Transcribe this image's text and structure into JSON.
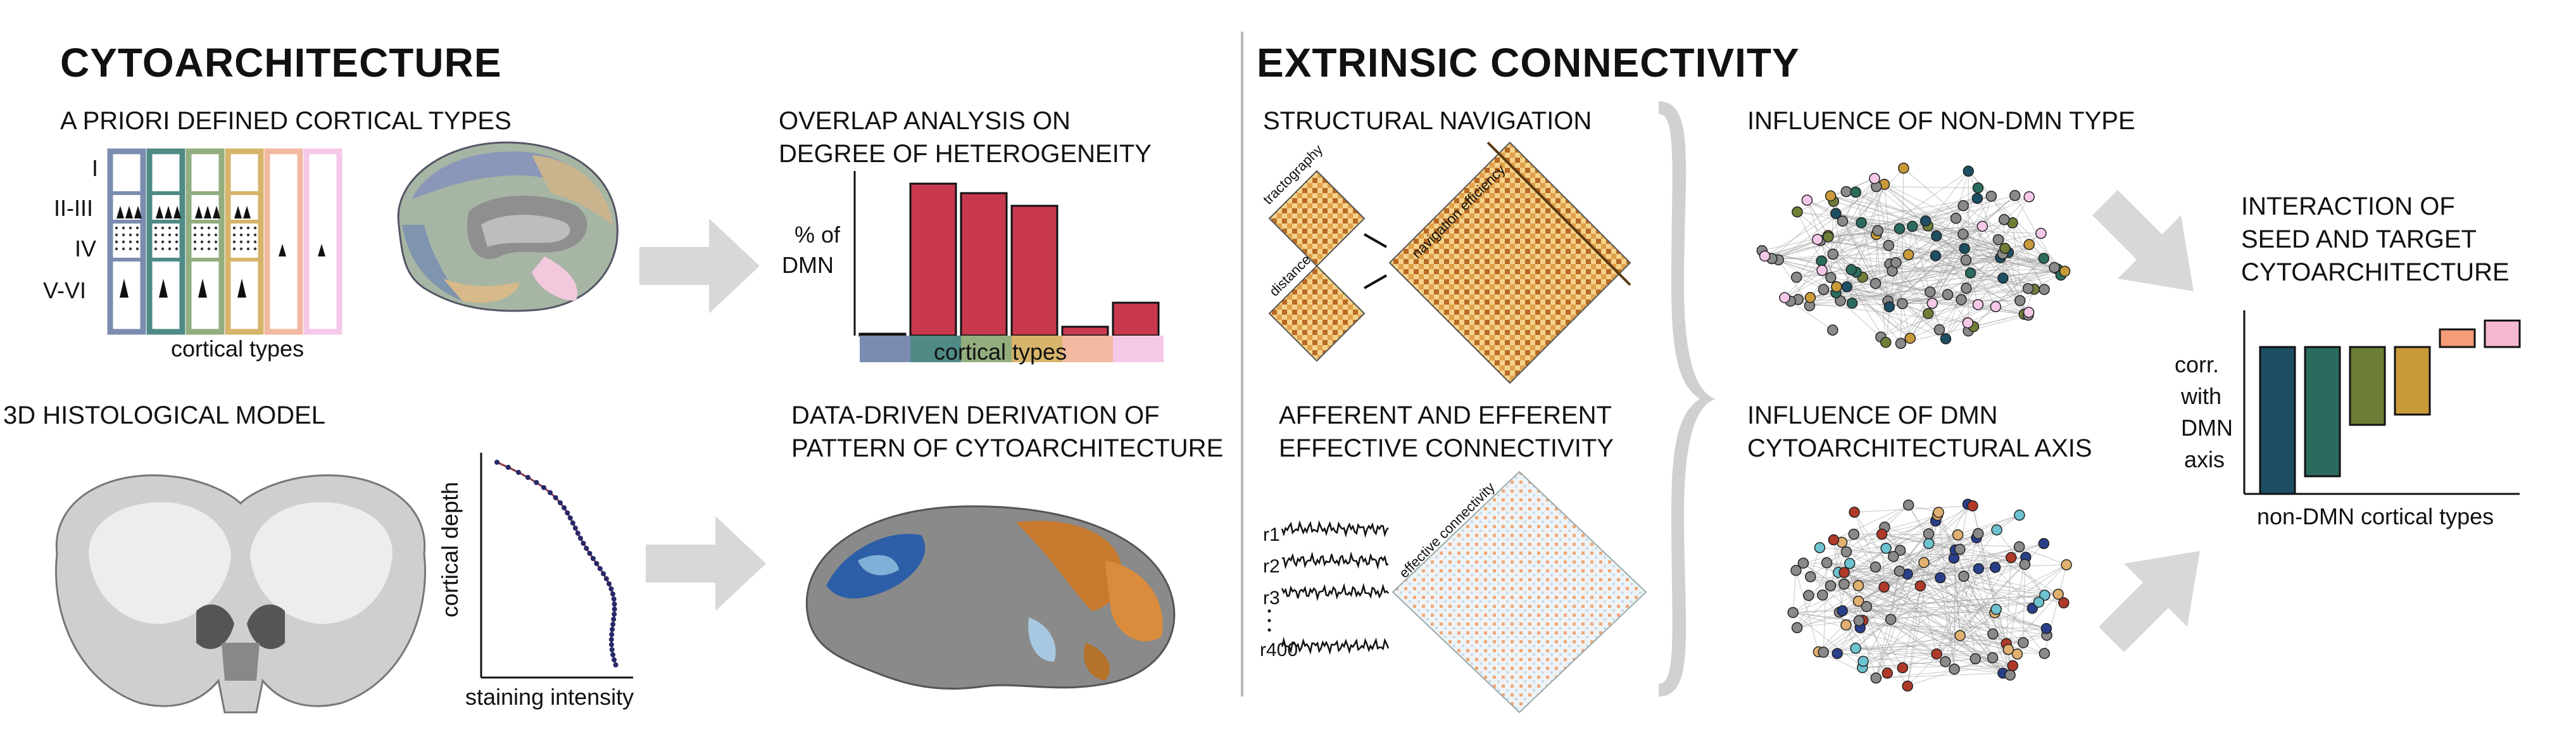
{
  "sections": {
    "cytoarchitecture": "CYTOARCHITECTURE",
    "extrinsic": "EXTRINSIC CONNECTIVITY"
  },
  "panels": {
    "a_priori": "A PRIORI DEFINED CORTICAL TYPES",
    "overlap_1": "OVERLAP ANALYSIS ON",
    "overlap_2": "DEGREE OF HETEROGENEITY",
    "histo_model": "3D HISTOLOGICAL MODEL",
    "datadriven_1": "DATA-DRIVEN DERIVATION OF",
    "datadriven_2": "PATTERN OF CYTOARCHITECTURE",
    "structural_nav": "STRUCTURAL NAVIGATION",
    "afferent_1": "AFFERENT AND EFFERENT",
    "afferent_2": "EFFECTIVE CONNECTIVITY",
    "nondmn_1": "INFLUENCE OF NON-DMN TYPE",
    "dmn_1": "INFLUENCE OF DMN",
    "dmn_2": "CYTOARCHITECTURAL AXIS",
    "interaction_1": "INTERACTION OF",
    "interaction_2": "SEED AND TARGET",
    "interaction_3": "CYTOARCHITECTURE"
  },
  "layers": [
    "I",
    "II-III",
    "IV",
    "V-VI"
  ],
  "cortical_types_label": "cortical types",
  "overlap_ylabel_1": "% of",
  "overlap_ylabel_2": "DMN",
  "overlap_xlabel": "cortical types",
  "profile_ylabel": "cortical depth",
  "profile_xlabel": "staining intensity",
  "matrix_labels": {
    "tractography": "tractography",
    "distance": "distance",
    "navigation": "navigation efficiency",
    "effective": "effective connectivity"
  },
  "timeseries_labels": [
    "r1",
    "r2",
    "r3",
    "r400"
  ],
  "interaction_ylabel": [
    "corr.",
    "with",
    "DMN",
    "axis"
  ],
  "interaction_xlabel": "non-DMN cortical types",
  "type_colors": [
    "#7b8cb0",
    "#4f8a86",
    "#93ad7e",
    "#d6b46a",
    "#f3b8a0",
    "#f5c8e8"
  ],
  "overlap_chart": {
    "type": "bar",
    "values": [
      0.3,
      24,
      22.5,
      20.5,
      1.4,
      5.2
    ],
    "ylim": [
      0,
      26
    ],
    "bar_color": "#c8394e"
  },
  "interaction_chart": {
    "type": "bar",
    "values": [
      -1.0,
      -0.88,
      -0.53,
      -0.46,
      0.12,
      0.18
    ],
    "ylim": [
      -1.0,
      0.25
    ],
    "colors": [
      "#1d4e63",
      "#2a6b5e",
      "#6c7e36",
      "#c99a3a",
      "#f59c78",
      "#f5b8d2"
    ]
  }
}
